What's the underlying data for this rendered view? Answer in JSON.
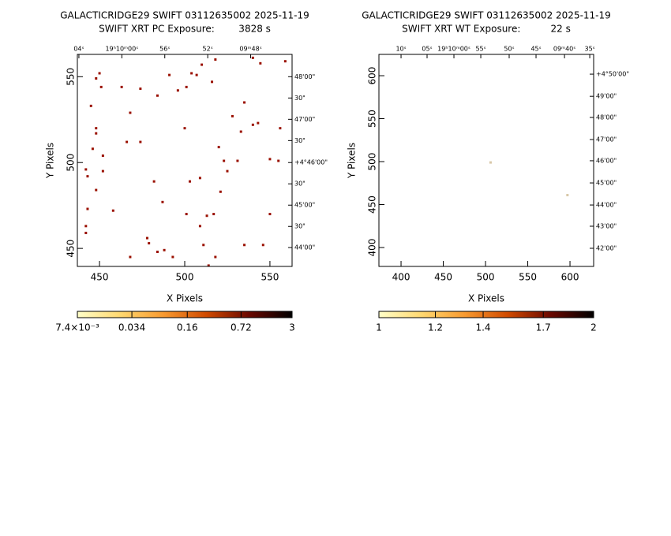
{
  "chart_data": [
    {
      "type": "scatter",
      "title": "GALACTICRIDGE29 SWIFT 03112635002 2025-11-19",
      "subtitle": "SWIFT XRT PC Exposure:        3828 s",
      "xlabel": "X Pixels",
      "ylabel": "Y Pixels",
      "xlim": [
        437,
        563
      ],
      "ylim": [
        439.5,
        563
      ],
      "xticks": [
        450,
        500,
        550
      ],
      "yticks": [
        450,
        500,
        550
      ],
      "top_ticks": [
        {
          "value": 437.9,
          "label": "04ˢ"
        },
        {
          "value": 463.1,
          "label": "19ʰ10ᵐ00ˢ"
        },
        {
          "value": 488.3,
          "label": "56ˢ"
        },
        {
          "value": 513.5,
          "label": "52ˢ"
        },
        {
          "value": 538.7,
          "label": "09ᵐ48ˢ"
        }
      ],
      "right_ticks": [
        {
          "value": 550,
          "label": "48'00\""
        },
        {
          "value": 537.6,
          "label": "30\""
        },
        {
          "value": 525.2,
          "label": "47'00\""
        },
        {
          "value": 512.8,
          "label": "30\""
        },
        {
          "value": 500,
          "label": "+4°46'00\""
        },
        {
          "value": 487.6,
          "label": "30\""
        },
        {
          "value": 475.2,
          "label": "45'00\""
        },
        {
          "value": 462.8,
          "label": "30\""
        },
        {
          "value": 450.5,
          "label": "44'00\""
        }
      ],
      "color": "#9a1000",
      "x": [
        448,
        450,
        451,
        445,
        463,
        474,
        484,
        491,
        496,
        501,
        504,
        507,
        510,
        516,
        518,
        540,
        544.4,
        559,
        535,
        468,
        448,
        448,
        466,
        474,
        500,
        528,
        540,
        543,
        533,
        556,
        446,
        452,
        520,
        523,
        531,
        550,
        555,
        442,
        452,
        525,
        443,
        482,
        503,
        509,
        448,
        521,
        487,
        443,
        458,
        501,
        517,
        513,
        550,
        509,
        442,
        442,
        478,
        479,
        511,
        535,
        546,
        484,
        488,
        493,
        468,
        518,
        514
      ],
      "y": [
        549,
        552,
        544,
        533,
        544,
        543,
        539,
        551,
        542,
        544,
        552,
        551,
        557,
        547,
        560,
        561,
        557.8,
        559,
        535,
        529,
        520,
        517,
        512,
        512,
        520,
        527,
        522,
        523,
        518,
        520,
        508,
        504,
        509,
        501,
        501,
        502,
        501,
        496,
        495,
        495,
        492,
        489,
        489,
        491,
        484,
        483,
        477,
        473,
        472,
        470,
        470,
        469,
        470,
        463,
        463,
        459,
        456,
        453,
        452,
        452,
        452,
        448,
        449,
        445,
        445,
        445,
        440
      ],
      "colorbar": {
        "scale": "log",
        "lim": [
          0.0074,
          3
        ],
        "ticks": [
          {
            "value": 0.0074,
            "label": "7.4×10⁻³"
          },
          0.034,
          0.16,
          0.72,
          3
        ],
        "colors": [
          "#ffffc8",
          "#ffd870",
          "#f89a30",
          "#d04a00",
          "#6a0800",
          "#000000"
        ]
      }
    },
    {
      "type": "scatter",
      "title": "GALACTICRIDGE29 SWIFT 03112635002 2025-11-19",
      "subtitle": "SWIFT XRT WT Exposure:          22 s",
      "xlabel": "X Pixels",
      "ylabel": "Y Pixels",
      "xlim": [
        373.8,
        628
      ],
      "ylim": [
        378,
        624.8
      ],
      "xticks": [
        400,
        450,
        500,
        550,
        600
      ],
      "yticks": [
        400,
        450,
        500,
        550,
        600
      ],
      "top_ticks": [
        {
          "value": 400,
          "label": "10ˢ"
        },
        {
          "value": 430.8,
          "label": "05ˢ"
        },
        {
          "value": 462.6,
          "label": "19ʰ10ᵐ00ˢ"
        },
        {
          "value": 494.4,
          "label": "55ˢ"
        },
        {
          "value": 528,
          "label": "50ˢ"
        },
        {
          "value": 559.8,
          "label": "45ˢ"
        },
        {
          "value": 593.5,
          "label": "09ᵐ40ˢ"
        },
        {
          "value": 623.4,
          "label": "35ˢ"
        }
      ],
      "right_ticks": [
        {
          "value": 601.8,
          "label": "+4°50'00\""
        },
        {
          "value": 576,
          "label": "49'00\""
        },
        {
          "value": 551.4,
          "label": "48'00\""
        },
        {
          "value": 525.7,
          "label": "47'00\""
        },
        {
          "value": 501,
          "label": "46'00\""
        },
        {
          "value": 475.2,
          "label": "45'00\""
        },
        {
          "value": 449.5,
          "label": "44'00\""
        },
        {
          "value": 424.8,
          "label": "43'00\""
        },
        {
          "value": 399.1,
          "label": "42'00\""
        }
      ],
      "color": "#d8c8a8",
      "x": [
        506,
        597
      ],
      "y": [
        499,
        461
      ],
      "colorbar": {
        "scale": "log",
        "lim": [
          1,
          2
        ],
        "ticks": [
          1,
          1.2,
          1.4,
          1.7,
          2
        ],
        "colors": [
          "#ffffc8",
          "#ffd870",
          "#f89a30",
          "#d04a00",
          "#6a0800",
          "#000000"
        ]
      }
    }
  ]
}
